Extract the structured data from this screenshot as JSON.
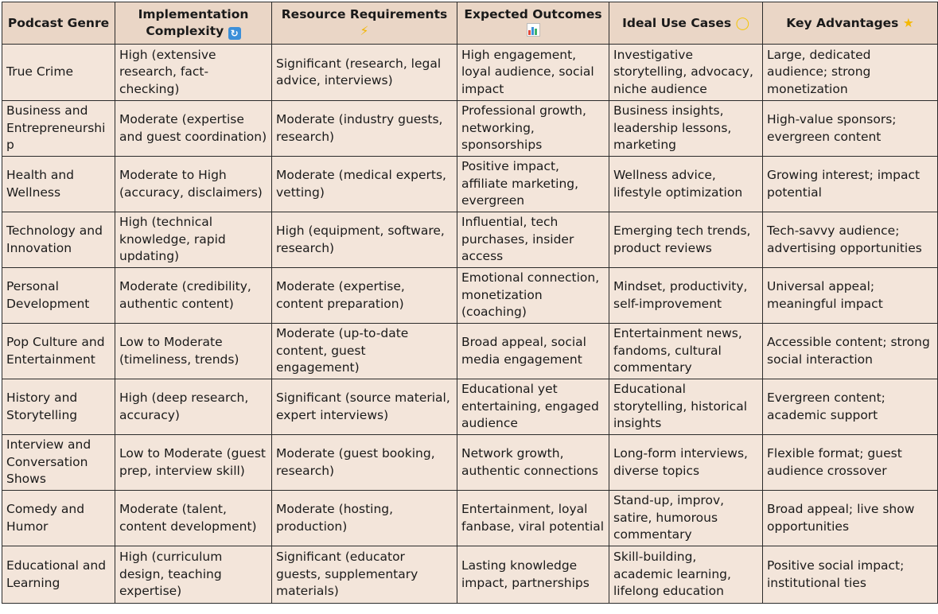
{
  "headers": [
    {
      "label": "Podcast Genre",
      "icon": null
    },
    {
      "label": "Implementation Complexity",
      "icon": "refresh-icon"
    },
    {
      "label": "Resource Requirements",
      "icon": "lightning-icon"
    },
    {
      "label": "Expected Outcomes",
      "icon": "bar-chart-icon"
    },
    {
      "label": "Ideal Use Cases",
      "icon": "lightbulb-icon"
    },
    {
      "label": "Key Advantages",
      "icon": "star-icon"
    }
  ],
  "rows": [
    [
      "True Crime",
      "High (extensive research, fact-checking)",
      "Significant (research, legal advice, interviews)",
      "High engagement, loyal audience, social impact",
      "Investigative storytelling, advocacy, niche audience",
      "Large, dedicated audience; strong monetization"
    ],
    [
      "Business and Entrepreneurship",
      "Moderate (expertise and guest coordination)",
      "Moderate (industry guests, research)",
      "Professional growth, networking, sponsorships",
      "Business insights, leadership lessons, marketing",
      "High-value sponsors; evergreen content"
    ],
    [
      "Health and Wellness",
      "Moderate to High (accuracy, disclaimers)",
      "Moderate (medical experts, vetting)",
      "Positive impact, affiliate marketing, evergreen",
      "Wellness advice, lifestyle optimization",
      "Growing interest; impact potential"
    ],
    [
      "Technology and Innovation",
      "High (technical knowledge, rapid updating)",
      "High (equipment, software, research)",
      "Influential, tech purchases, insider access",
      "Emerging tech trends, product reviews",
      "Tech-savvy audience; advertising opportunities"
    ],
    [
      "Personal Development",
      "Moderate (credibility, authentic content)",
      "Moderate (expertise, content preparation)",
      "Emotional connection, monetization (coaching)",
      "Mindset, productivity, self-improvement",
      "Universal appeal; meaningful impact"
    ],
    [
      "Pop Culture and Entertainment",
      "Low to Moderate (timeliness, trends)",
      "Moderate (up-to-date content, guest engagement)",
      "Broad appeal, social media engagement",
      "Entertainment news, fandoms, cultural commentary",
      "Accessible content; strong social interaction"
    ],
    [
      "History and Storytelling",
      "High (deep research, accuracy)",
      "Significant (source material, expert interviews)",
      "Educational yet entertaining, engaged audience",
      "Educational storytelling, historical insights",
      "Evergreen content; academic support"
    ],
    [
      "Interview and Conversation Shows",
      "Low to Moderate (guest prep, interview skill)",
      "Moderate (guest booking, research)",
      "Network growth, authentic connections",
      "Long-form interviews, diverse topics",
      "Flexible format; guest audience crossover"
    ],
    [
      "Comedy and Humor",
      "Moderate (talent, content development)",
      "Moderate (hosting, production)",
      "Entertainment, loyal fanbase, viral potential",
      "Stand-up, improv, satire, humorous commentary",
      "Broad appeal; live show opportunities"
    ],
    [
      "Educational and Learning",
      "High (curriculum design, teaching expertise)",
      "Significant (educator guests, supplementary materials)",
      "Lasting knowledge impact, partnerships",
      "Skill-building, academic learning, lifelong education",
      "Positive social impact; institutional ties"
    ]
  ]
}
